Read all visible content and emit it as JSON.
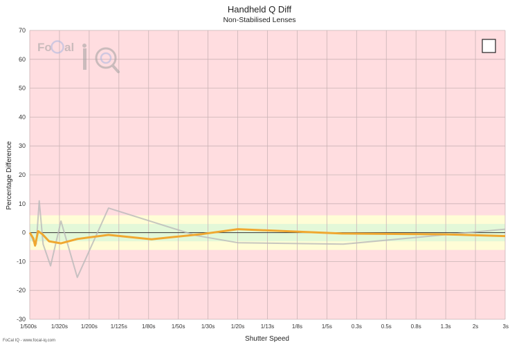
{
  "chart_data": {
    "type": "line",
    "title": "Handheld Q Diff",
    "subtitle": "Non-Stabilised Lenses",
    "xlabel": "Shutter Speed",
    "ylabel": "Percentage Difference",
    "ylim": [
      -30,
      70
    ],
    "yticks": [
      -30,
      -20,
      -10,
      0,
      10,
      20,
      30,
      40,
      50,
      60,
      70
    ],
    "xlim": [
      0,
      16
    ],
    "categories": [
      "1/500s",
      "1/320s",
      "1/200s",
      "1/125s",
      "1/80s",
      "1/50s",
      "1/30s",
      "1/20s",
      "1/13s",
      "1/8s",
      "1/5s",
      "0.3s",
      "0.5s",
      "0.8s",
      "1.3s",
      "2s",
      "3s"
    ],
    "grid": true,
    "bands": [
      {
        "from": -30,
        "to": 70,
        "color": "#ffdde0"
      },
      {
        "from": -6,
        "to": 6,
        "color": "#fffdd6"
      },
      {
        "from": -3,
        "to": 3,
        "color": "#e3f8d8"
      }
    ],
    "zero_line_color": "#333333",
    "series": [
      {
        "color": "#b9b9b9",
        "x": [
          0,
          0.12,
          0.22,
          0.32,
          0.45,
          0.7,
          1.05,
          1.6,
          2.65,
          5.6,
          7.0,
          10.55,
          16.0
        ],
        "y": [
          0,
          -3,
          -4,
          11,
          -4,
          -11.5,
          4,
          -15.5,
          8.5,
          -1,
          -3.5,
          -4,
          1.2
        ]
      },
      {
        "color": "#f0a830",
        "x": [
          0,
          0.12,
          0.18,
          0.28,
          0.42,
          0.65,
          1.05,
          1.6,
          2.65,
          4.1,
          5.8,
          7.0,
          10.5,
          14.0,
          16.0
        ],
        "y": [
          0,
          -2,
          -4.5,
          0.5,
          -0.5,
          -3,
          -3.7,
          -2.2,
          -0.8,
          -2.3,
          -0.5,
          1.2,
          -0.3,
          -0.6,
          -1.2
        ]
      }
    ],
    "legend": "top-right"
  },
  "footer": {
    "credit": "FoCal IQ - www.focal-iq.com"
  },
  "colors": {
    "logo_blue": "#aab8e0",
    "logo_gray": "#a0a0a0"
  }
}
